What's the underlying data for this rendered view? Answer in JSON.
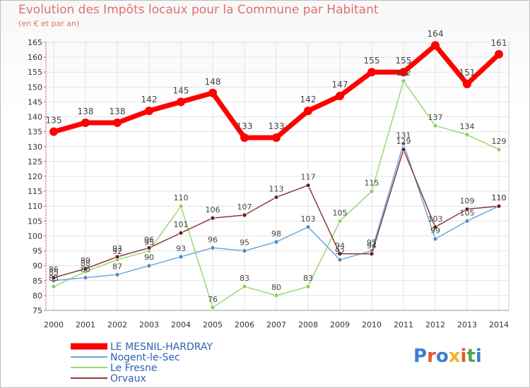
{
  "header": {
    "title": "Evolution des Impôts locaux pour la Commune par Habitant",
    "subtitle": "(en € et par an)"
  },
  "logo": {
    "text": "Proxiti",
    "colors": [
      "#3a7fd0",
      "#e05a2a",
      "#3a7fd0",
      "#f3b02a",
      "#e05a2a",
      "#4aa84a",
      "#3a7fd0"
    ]
  },
  "chart_data": {
    "type": "line",
    "title": "Evolution des Impôts locaux pour la Commune par Habitant",
    "subtitle": "(en € et par an)",
    "x": [
      2000,
      2001,
      2002,
      2003,
      2004,
      2005,
      2006,
      2007,
      2008,
      2009,
      2010,
      2011,
      2012,
      2013,
      2014
    ],
    "ylim": [
      75,
      165
    ],
    "yticks": [
      75,
      80,
      85,
      90,
      95,
      100,
      105,
      110,
      115,
      120,
      125,
      130,
      135,
      140,
      145,
      150,
      155,
      160,
      165
    ],
    "grid": true,
    "legend_position": "bottom",
    "series": [
      {
        "name": "LE MESNIL-HARDRAY",
        "color": "#ff0000",
        "marker": "#ff0000",
        "width": 7,
        "radius": 6,
        "values": [
          135,
          138,
          138,
          142,
          145,
          148,
          133,
          133,
          142,
          147,
          155,
          155,
          164,
          151,
          161
        ]
      },
      {
        "name": "Nogent-le-Sec",
        "color": "#6fa8dc",
        "marker": "#4a86c8",
        "width": 1.5,
        "radius": 3,
        "values": [
          85,
          86,
          87,
          90,
          93,
          96,
          95,
          98,
          103,
          92,
          95,
          131,
          99,
          105,
          110
        ]
      },
      {
        "name": "Le Fresne",
        "color": "#9bd86e",
        "marker": "#8ccf5e",
        "width": 1.5,
        "radius": 3,
        "values": [
          83,
          88,
          92,
          95,
          110,
          76,
          83,
          80,
          83,
          105,
          115,
          152,
          137,
          134,
          129
        ]
      },
      {
        "name": "Orvaux",
        "color": "#8b3a3a",
        "marker": "#6b1a1a",
        "width": 1.5,
        "radius": 3,
        "values": [
          86,
          89,
          93,
          96,
          101,
          106,
          107,
          113,
          117,
          94,
          94,
          129,
          103,
          109,
          110
        ]
      }
    ],
    "data_labels": [
      {
        "series": 0,
        "labels": [
          "135",
          "138",
          "138",
          "142",
          "145",
          "148",
          "133",
          "133",
          "142",
          "147",
          "155",
          "155",
          "164",
          "151",
          "161"
        ]
      },
      {
        "series": 1,
        "labels": [
          "85",
          "86",
          "87",
          "90",
          "93",
          "96",
          "95",
          "98",
          "103",
          "92",
          "95",
          "131",
          "99",
          "105",
          "110"
        ]
      },
      {
        "series": 2,
        "labels": [
          "83",
          "88",
          "92",
          "95",
          "110",
          "76",
          "83",
          "80",
          "83",
          "105",
          "115",
          "152",
          "137",
          "134",
          "129"
        ]
      },
      {
        "series": 3,
        "labels": [
          "86",
          "89",
          "93",
          "96",
          "101",
          "106",
          "107",
          "113",
          "117",
          "94",
          "94",
          "129",
          "103",
          "109",
          "110"
        ]
      }
    ]
  }
}
